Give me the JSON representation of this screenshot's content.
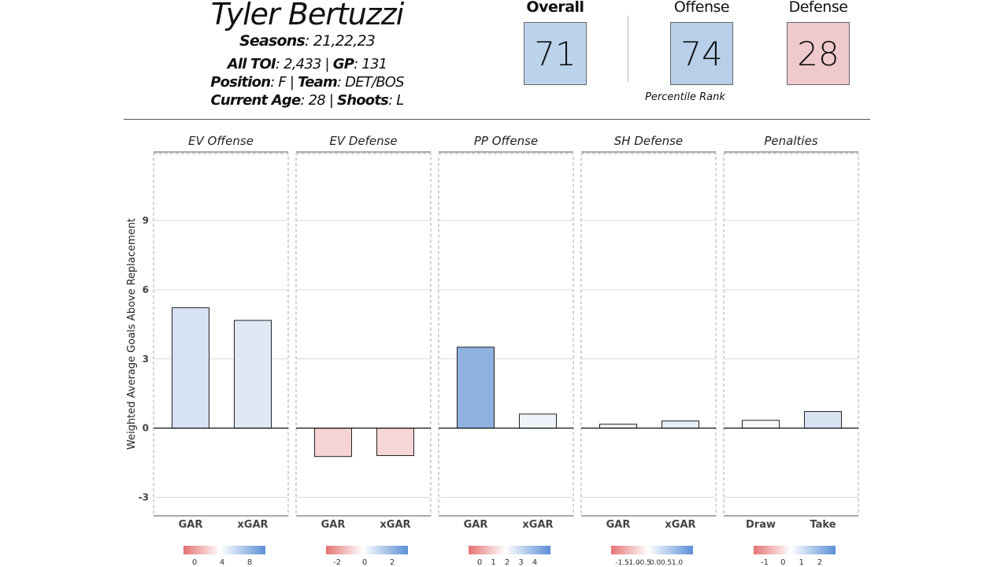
{
  "player": {
    "name": "Tyler Bertuzzi",
    "seasons_label": "Seasons",
    "seasons": ": 21,22,23",
    "toi_label": "All TOI",
    "toi": ": 2,433 | ",
    "gp_label": "GP",
    "gp": ": 131",
    "position_label": "Position",
    "position": ": F | ",
    "team_label": "Team",
    "team": ": DET/BOS",
    "age_label": "Current Age",
    "age": ": 28 | ",
    "shoots_label": "Shoots",
    "shoots": ": L"
  },
  "scores": {
    "overall": {
      "label": "Overall",
      "value": "71",
      "color": "#bcd3ec"
    },
    "offense": {
      "label": "Offense",
      "value": "74",
      "color": "#b7cfe9"
    },
    "defense": {
      "label": "Defense",
      "value": "28",
      "color": "#f0c9cc"
    },
    "caption": "Percentile Rank"
  },
  "chart_data": {
    "type": "bar",
    "ylabel": "Weighted Average Goals Above Replacement",
    "ylim": [
      -3.8,
      11.9
    ],
    "yticks": [
      -3,
      0,
      3,
      6,
      9
    ],
    "grid": true,
    "panels": [
      {
        "title": "EV Offense",
        "categories": [
          "GAR",
          "xGAR"
        ],
        "values": [
          5.22,
          4.67
        ],
        "colors": [
          "#d6e2f3",
          "#dfe8f5"
        ],
        "legend_ticks": [
          "0",
          "4",
          "8"
        ]
      },
      {
        "title": "EV Defense",
        "categories": [
          "GAR",
          "xGAR"
        ],
        "values": [
          -1.23,
          -1.19
        ],
        "colors": [
          "#f7d4d4",
          "#f7d6d6"
        ],
        "legend_ticks": [
          "-2",
          "0",
          "2"
        ]
      },
      {
        "title": "PP Offense",
        "categories": [
          "GAR",
          "xGAR"
        ],
        "values": [
          3.51,
          0.61
        ],
        "colors": [
          "#8fb1de",
          "#eef3fa"
        ],
        "legend_ticks": [
          "0",
          "1",
          "2",
          "3",
          "4"
        ]
      },
      {
        "title": "SH Defense",
        "categories": [
          "GAR",
          "xGAR"
        ],
        "values": [
          0.17,
          0.31
        ],
        "colors": [
          "#eef2f9",
          "#e6edf7"
        ],
        "legend_ticks": [
          "-1.5",
          "-1.0",
          "-0.5",
          "0.0",
          "0.5",
          "1.0"
        ]
      },
      {
        "title": "Penalties",
        "categories": [
          "Draw",
          "Take"
        ],
        "values": [
          0.34,
          0.72
        ],
        "colors": [
          "#f5f7fb",
          "#d9e4f3"
        ],
        "legend_ticks": [
          "-1",
          "0",
          "1",
          "2"
        ]
      }
    ]
  }
}
